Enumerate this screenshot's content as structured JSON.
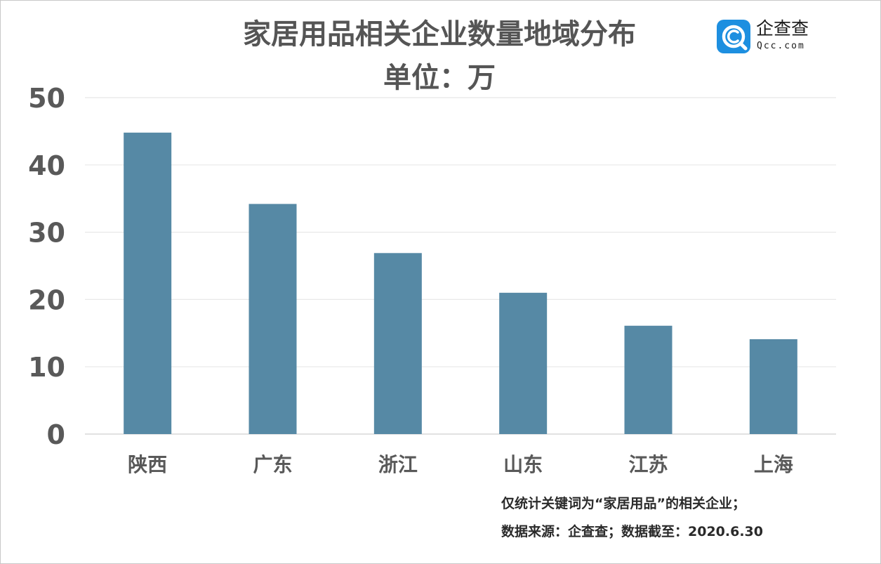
{
  "chart_data": {
    "type": "bar",
    "title": "家居用品相关企业数量地域分布",
    "subtitle": "单位：万",
    "xlabel": "",
    "ylabel": "",
    "categories": [
      "陕西",
      "广东",
      "浙江",
      "山东",
      "江苏",
      "上海"
    ],
    "values": [
      44.8,
      34.2,
      26.9,
      21.0,
      16.1,
      14.1
    ],
    "ylim": [
      0,
      50
    ],
    "yticks": [
      "0",
      "10",
      "20",
      "30",
      "40",
      "50"
    ],
    "grid": true,
    "legend": "none",
    "bar_color": "#5689a5"
  },
  "logo": {
    "name": "企查查",
    "domain": "Qcc.com",
    "icon": "qcc-logo-icon",
    "color": "#1d8fe0"
  },
  "footnotes": {
    "scope": "仅统计关键词为“家居用品”的相关企业；",
    "source": "数据来源：企查查；数据截至：2020.6.30"
  }
}
